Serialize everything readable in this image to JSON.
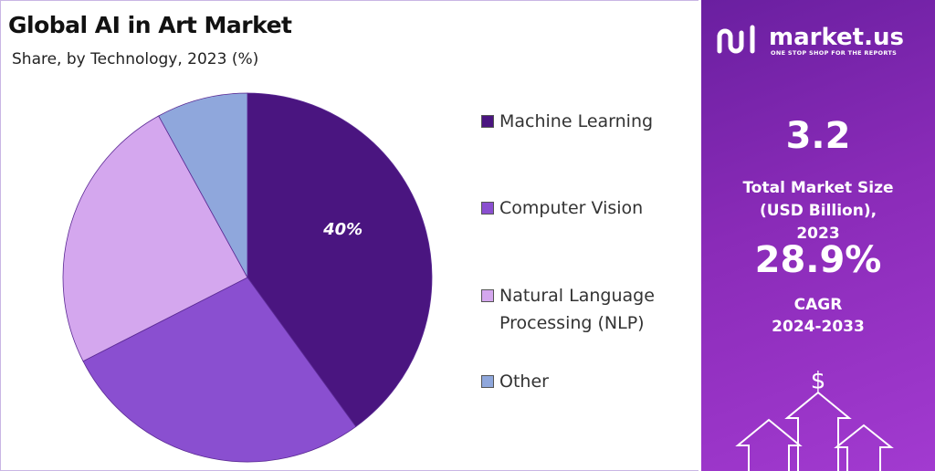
{
  "chart_data": {
    "type": "pie",
    "title": "Global AI in Art Market",
    "subtitle": "Share, by Technology, 2023 (%)",
    "categories": [
      "Machine Learning",
      "Computer Vision",
      "Natural Language Processing (NLP)",
      "Other"
    ],
    "values": [
      40,
      27.5,
      24.5,
      8
    ],
    "value_labels": [
      "40%",
      null,
      null,
      null
    ],
    "colors": [
      "#4a1580",
      "#8a4fd0",
      "#d4a7ee",
      "#8fa7dc"
    ],
    "legend": "right"
  },
  "panel": {
    "brand": "market.us",
    "tagline": "ONE STOP SHOP FOR THE REPORTS",
    "market_size": "3.2",
    "market_size_label": "Total Market Size (USD Billion), 2023",
    "cagr": "28.9%",
    "cagr_label": "CAGR",
    "cagr_period": "2024-2033"
  }
}
